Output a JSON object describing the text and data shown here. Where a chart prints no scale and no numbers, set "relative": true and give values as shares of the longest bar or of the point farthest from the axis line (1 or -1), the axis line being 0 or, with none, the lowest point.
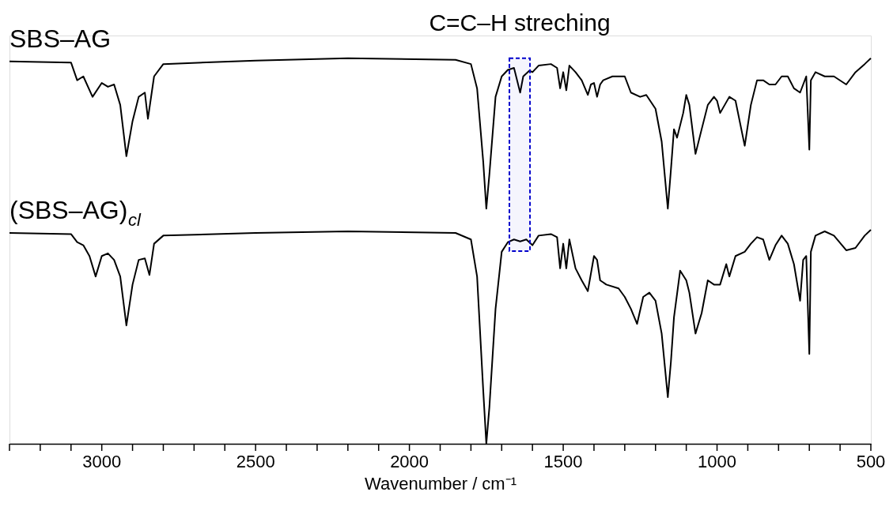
{
  "chart_data": {
    "type": "line",
    "relative": true,
    "xlabel": "Wavenumber / cm⁻¹",
    "xlim": [
      3300,
      500
    ],
    "xticks": [
      {
        "value": 3300,
        "label": null
      },
      {
        "value": 3200,
        "label": null
      },
      {
        "value": 3100,
        "label": null
      },
      3000,
      {
        "value": 2900,
        "label": null
      },
      {
        "value": 2800,
        "label": null
      },
      {
        "value": 2700,
        "label": null
      },
      {
        "value": 2600,
        "label": null
      },
      2500,
      {
        "value": 2400,
        "label": null
      },
      {
        "value": 2300,
        "label": null
      },
      {
        "value": 2200,
        "label": null
      },
      {
        "value": 2100,
        "label": null
      },
      2000,
      {
        "value": 1900,
        "label": null
      },
      {
        "value": 1800,
        "label": null
      },
      {
        "value": 1700,
        "label": null
      },
      {
        "value": 1600,
        "label": null
      },
      1500,
      {
        "value": 1400,
        "label": null
      },
      {
        "value": 1300,
        "label": null
      },
      {
        "value": 1200,
        "label": null
      },
      {
        "value": 1100,
        "label": null
      },
      1000,
      {
        "value": 900,
        "label": null
      },
      {
        "value": 800,
        "label": null
      },
      {
        "value": 700,
        "label": null
      },
      {
        "value": 600,
        "label": null
      },
      500
    ],
    "grid": false,
    "bands": [
      {
        "axis": "x",
        "from": 1675,
        "to": 1608,
        "label": "C=C–H streching",
        "color": "#0000cc"
      }
    ],
    "series": [
      {
        "name": "SBS–AG",
        "color": "#000000",
        "x": [
          3300,
          3100,
          3080,
          3060,
          3030,
          3000,
          2980,
          2960,
          2940,
          2920,
          2900,
          2880,
          2860,
          2850,
          2830,
          2800,
          2500,
          2200,
          1850,
          1800,
          1780,
          1760,
          1750,
          1740,
          1720,
          1700,
          1680,
          1660,
          1640,
          1630,
          1610,
          1600,
          1580,
          1540,
          1520,
          1510,
          1500,
          1490,
          1480,
          1460,
          1440,
          1420,
          1410,
          1400,
          1390,
          1380,
          1370,
          1340,
          1300,
          1280,
          1250,
          1230,
          1200,
          1180,
          1160,
          1150,
          1140,
          1130,
          1110,
          1100,
          1090,
          1070,
          1050,
          1030,
          1010,
          1000,
          990,
          960,
          940,
          910,
          890,
          870,
          850,
          830,
          810,
          790,
          770,
          750,
          730,
          710,
          700,
          695,
          680,
          650,
          620,
          580,
          550,
          520,
          500
        ],
        "values": [
          0.992,
          0.989,
          0.943,
          0.953,
          0.9,
          0.936,
          0.926,
          0.932,
          0.879,
          0.746,
          0.837,
          0.9,
          0.911,
          0.843,
          0.953,
          0.985,
          0.994,
          1.0,
          0.996,
          0.985,
          0.922,
          0.731,
          0.61,
          0.699,
          0.9,
          0.953,
          0.97,
          0.975,
          0.911,
          0.953,
          0.968,
          0.964,
          0.981,
          0.985,
          0.975,
          0.922,
          0.964,
          0.917,
          0.981,
          0.964,
          0.943,
          0.905,
          0.932,
          0.936,
          0.9,
          0.932,
          0.943,
          0.953,
          0.953,
          0.911,
          0.9,
          0.905,
          0.869,
          0.784,
          0.61,
          0.71,
          0.816,
          0.794,
          0.858,
          0.905,
          0.879,
          0.752,
          0.816,
          0.879,
          0.9,
          0.89,
          0.858,
          0.9,
          0.89,
          0.773,
          0.879,
          0.943,
          0.943,
          0.932,
          0.932,
          0.953,
          0.953,
          0.922,
          0.911,
          0.953,
          0.763,
          0.943,
          0.964,
          0.953,
          0.953,
          0.932,
          0.964,
          0.985,
          1.0
        ]
      },
      {
        "name": "(SBS–AG)$_{cl}$",
        "color": "#000000",
        "x": [
          3300,
          3100,
          3080,
          3060,
          3040,
          3020,
          3000,
          2980,
          2960,
          2940,
          2920,
          2900,
          2880,
          2860,
          2845,
          2830,
          2800,
          2500,
          2200,
          1850,
          1800,
          1780,
          1760,
          1750,
          1740,
          1720,
          1700,
          1680,
          1660,
          1640,
          1620,
          1600,
          1580,
          1540,
          1520,
          1510,
          1500,
          1490,
          1480,
          1460,
          1440,
          1420,
          1400,
          1390,
          1380,
          1360,
          1320,
          1300,
          1280,
          1260,
          1240,
          1220,
          1200,
          1180,
          1160,
          1150,
          1140,
          1120,
          1100,
          1090,
          1070,
          1050,
          1030,
          1010,
          990,
          970,
          960,
          940,
          910,
          890,
          870,
          850,
          830,
          810,
          790,
          770,
          750,
          730,
          720,
          710,
          700,
          695,
          680,
          650,
          620,
          580,
          550,
          520,
          500
        ],
        "values": [
          0.547,
          0.544,
          0.523,
          0.515,
          0.487,
          0.434,
          0.487,
          0.494,
          0.477,
          0.434,
          0.307,
          0.413,
          0.477,
          0.481,
          0.438,
          0.519,
          0.54,
          0.547,
          0.551,
          0.547,
          0.53,
          0.434,
          0.138,
          0.0,
          0.095,
          0.35,
          0.498,
          0.523,
          0.53,
          0.525,
          0.53,
          0.515,
          0.54,
          0.544,
          0.536,
          0.455,
          0.519,
          0.455,
          0.53,
          0.455,
          0.424,
          0.396,
          0.487,
          0.477,
          0.424,
          0.413,
          0.403,
          0.381,
          0.35,
          0.311,
          0.381,
          0.392,
          0.371,
          0.286,
          0.121,
          0.212,
          0.328,
          0.449,
          0.424,
          0.392,
          0.286,
          0.339,
          0.424,
          0.413,
          0.413,
          0.466,
          0.434,
          0.487,
          0.498,
          0.519,
          0.536,
          0.53,
          0.477,
          0.515,
          0.54,
          0.519,
          0.466,
          0.371,
          0.477,
          0.487,
          0.233,
          0.498,
          0.54,
          0.551,
          0.54,
          0.502,
          0.508,
          0.54,
          0.555
        ]
      }
    ]
  }
}
